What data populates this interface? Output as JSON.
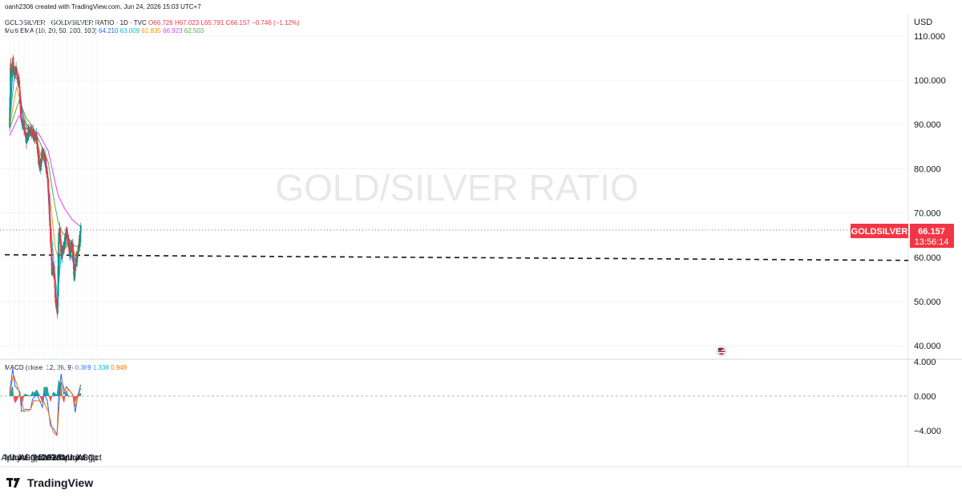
{
  "header": {
    "creator_line": "oanh2306 created with TradingView.com, Jun 24, 2026 15:03 UTC+7",
    "symbol_title": "GOLDSILVER · GOLD/SILVER RATIO · 1D · TVC",
    "ohlc": {
      "open": "O66.726",
      "high": "H67.023",
      "low": "L65.791",
      "close": "C66.157",
      "change": "−0.746 (−1.12%)"
    },
    "ema_label": "Multi EMA (10, 20, 50, 200, 100)",
    "ema_values": [
      "64.210",
      "63.009",
      "61.835",
      "66.923",
      "62.503"
    ],
    "macd_label": "MACD (close, 12, 26, 9)",
    "macd_values": [
      "0.389",
      "1.338",
      "0.949"
    ]
  },
  "watermark": "GOLD/SILVER RATIO",
  "price_tag": {
    "symbol": "GOLDSILVER",
    "price": "66.157",
    "countdown": "13:56:14"
  },
  "footer": {
    "brand": "TradingView"
  },
  "colors": {
    "up": "#089981",
    "down": "#f23645",
    "ema10": "#2962ff",
    "ema20": "#00bcd4",
    "ema50": "#ff9800",
    "ema200": "#e040fb",
    "ema100": "#4caf50",
    "macd": "#2962ff",
    "signal": "#ff6d00",
    "hist_up": "#26a69a",
    "hist_down": "#ef5350"
  },
  "chart_data": {
    "type": "candlestick",
    "title": "GOLDSILVER · GOLD/SILVER RATIO · 1D · TVC",
    "price_axis": {
      "unit": "USD",
      "ticks": [
        "110.000",
        "100.000",
        "90.000",
        "80.000",
        "70.000",
        "60.000",
        "50.000",
        "40.000"
      ],
      "range": [
        38,
        115
      ]
    },
    "macd_axis": {
      "ticks": [
        "4.000",
        "0.000",
        "−4.000"
      ],
      "range": [
        -5.5,
        4.5
      ]
    },
    "time_axis": {
      "labels": [
        "Apr",
        "May",
        "Jun",
        "Jul",
        "Aug",
        "Sep",
        "Oct",
        "Nov",
        "Dec",
        "2026",
        "Feb",
        "Mar",
        "Apr",
        "May",
        "Jun",
        "Jul",
        "Aug",
        "Sep",
        "Oct"
      ],
      "bold": [
        "2026"
      ]
    },
    "horizontal_line": 60.2,
    "price_path": [
      [
        "2025-04-01",
        89.5
      ],
      [
        "2025-04-08",
        104.5
      ],
      [
        "2025-04-15",
        101.0
      ],
      [
        "2025-04-22",
        104.0
      ],
      [
        "2025-05-01",
        101.5
      ],
      [
        "2025-05-12",
        103.0
      ],
      [
        "2025-05-20",
        100.5
      ],
      [
        "2025-06-01",
        99.5
      ],
      [
        "2025-06-08",
        94.0
      ],
      [
        "2025-06-15",
        90.5
      ],
      [
        "2025-07-01",
        89.5
      ],
      [
        "2025-07-15",
        86.5
      ],
      [
        "2025-08-01",
        89.0
      ],
      [
        "2025-08-15",
        88.5
      ],
      [
        "2025-09-01",
        87.5
      ],
      [
        "2025-09-15",
        87.5
      ],
      [
        "2025-10-01",
        82.0
      ],
      [
        "2025-10-15",
        80.0
      ],
      [
        "2025-10-25",
        84.5
      ],
      [
        "2025-11-10",
        82.5
      ],
      [
        "2025-11-25",
        78.5
      ],
      [
        "2025-12-05",
        73.5
      ],
      [
        "2025-12-15",
        65.0
      ],
      [
        "2025-12-25",
        56.0
      ],
      [
        "2026-01-05",
        58.0
      ],
      [
        "2026-01-15",
        51.0
      ],
      [
        "2026-01-22",
        49.5
      ],
      [
        "2026-01-28",
        46.5
      ],
      [
        "2026-02-01",
        56.5
      ],
      [
        "2026-02-05",
        64.5
      ],
      [
        "2026-02-12",
        66.0
      ],
      [
        "2026-02-22",
        60.0
      ],
      [
        "2026-03-05",
        62.0
      ],
      [
        "2026-03-15",
        63.0
      ],
      [
        "2026-03-25",
        66.0
      ],
      [
        "2026-04-05",
        64.0
      ],
      [
        "2026-04-15",
        61.0
      ],
      [
        "2026-04-25",
        62.5
      ],
      [
        "2026-05-05",
        62.0
      ],
      [
        "2026-05-15",
        55.0
      ],
      [
        "2026-05-22",
        58.5
      ],
      [
        "2026-06-01",
        60.0
      ],
      [
        "2026-06-10",
        62.0
      ],
      [
        "2026-06-15",
        64.5
      ],
      [
        "2026-06-20",
        63.5
      ],
      [
        "2026-06-24",
        66.157
      ]
    ],
    "emas": [
      {
        "name": "EMA 200",
        "value": "66.923",
        "points": [
          [
            "2025-04-01",
            87.5
          ],
          [
            "2025-06-01",
            92.0
          ],
          [
            "2025-08-01",
            89.5
          ],
          [
            "2025-10-01",
            88.0
          ],
          [
            "2025-12-01",
            84.0
          ],
          [
            "2026-01-01",
            79.0
          ],
          [
            "2026-02-01",
            74.0
          ],
          [
            "2026-03-15",
            71.0
          ],
          [
            "2026-05-01",
            68.5
          ],
          [
            "2026-06-24",
            66.9
          ]
        ]
      },
      {
        "name": "EMA 100",
        "value": "62.503",
        "points": [
          [
            "2025-04-01",
            89.0
          ],
          [
            "2025-06-01",
            95.5
          ],
          [
            "2025-07-15",
            91.5
          ],
          [
            "2025-09-01",
            89.0
          ],
          [
            "2025-10-15",
            85.5
          ],
          [
            "2025-12-01",
            81.5
          ],
          [
            "2026-01-01",
            74.0
          ],
          [
            "2026-02-01",
            68.0
          ],
          [
            "2026-03-01",
            65.5
          ],
          [
            "2026-04-15",
            64.0
          ],
          [
            "2026-05-15",
            62.5
          ],
          [
            "2026-06-24",
            62.5
          ]
        ]
      },
      {
        "name": "EMA 50",
        "value": "61.835",
        "points": [
          [
            "2025-04-01",
            89.5
          ],
          [
            "2025-05-15",
            98.5
          ],
          [
            "2025-06-15",
            94.0
          ],
          [
            "2025-08-01",
            88.5
          ],
          [
            "2025-09-15",
            87.0
          ],
          [
            "2025-10-15",
            83.0
          ],
          [
            "2025-11-15",
            81.0
          ],
          [
            "2025-12-15",
            72.0
          ],
          [
            "2026-01-15",
            62.0
          ],
          [
            "2026-02-01",
            60.0
          ],
          [
            "2026-03-01",
            61.0
          ],
          [
            "2026-04-15",
            63.5
          ],
          [
            "2026-05-20",
            60.5
          ],
          [
            "2026-06-24",
            61.8
          ]
        ]
      },
      {
        "name": "EMA 20",
        "value": "63.009",
        "points": [
          [
            "2025-04-01",
            90.0
          ],
          [
            "2025-05-01",
            101.0
          ],
          [
            "2025-06-01",
            99.5
          ],
          [
            "2025-06-20",
            92.5
          ],
          [
            "2025-08-01",
            88.0
          ],
          [
            "2025-09-15",
            87.5
          ],
          [
            "2025-10-15",
            81.5
          ],
          [
            "2025-11-01",
            83.0
          ],
          [
            "2025-11-25",
            79.5
          ],
          [
            "2025-12-20",
            66.0
          ],
          [
            "2026-01-15",
            55.0
          ],
          [
            "2026-01-30",
            51.0
          ],
          [
            "2026-02-20",
            60.5
          ],
          [
            "2026-03-15",
            62.0
          ],
          [
            "2026-04-10",
            64.0
          ],
          [
            "2026-05-01",
            62.0
          ],
          [
            "2026-05-25",
            58.5
          ],
          [
            "2026-06-24",
            63.0
          ]
        ]
      },
      {
        "name": "EMA 10",
        "value": "64.210",
        "points": [
          [
            "2025-04-01",
            90.5
          ],
          [
            "2025-04-20",
            101.5
          ],
          [
            "2025-05-15",
            102.0
          ],
          [
            "2025-06-10",
            96.0
          ],
          [
            "2025-07-01",
            89.5
          ],
          [
            "2025-08-10",
            88.5
          ],
          [
            "2025-09-15",
            87.5
          ],
          [
            "2025-10-10",
            81.0
          ],
          [
            "2025-10-28",
            83.5
          ],
          [
            "2025-11-25",
            78.0
          ],
          [
            "2025-12-20",
            62.0
          ],
          [
            "2026-01-15",
            53.0
          ],
          [
            "2026-01-30",
            49.0
          ],
          [
            "2026-02-10",
            60.0
          ],
          [
            "2026-02-20",
            63.0
          ],
          [
            "2026-03-10",
            61.5
          ],
          [
            "2026-03-30",
            65.0
          ],
          [
            "2026-04-15",
            62.0
          ],
          [
            "2026-05-20",
            57.0
          ],
          [
            "2026-06-05",
            60.0
          ],
          [
            "2026-06-24",
            64.2
          ]
        ]
      }
    ],
    "macd": {
      "macd_line": [
        [
          "2025-04-01",
          0.3
        ],
        [
          "2025-04-20",
          3.2
        ],
        [
          "2025-05-05",
          1.2
        ],
        [
          "2025-06-05",
          0.5
        ],
        [
          "2025-06-15",
          -1.8
        ],
        [
          "2025-07-10",
          -1.5
        ],
        [
          "2025-08-10",
          -1.6
        ],
        [
          "2025-08-25",
          -0.3
        ],
        [
          "2025-09-20",
          0.2
        ],
        [
          "2025-10-10",
          -0.6
        ],
        [
          "2025-10-25",
          -1.3
        ],
        [
          "2025-11-05",
          0.3
        ],
        [
          "2025-11-25",
          -0.5
        ],
        [
          "2025-12-15",
          -3.5
        ],
        [
          "2026-01-05",
          -3.8
        ],
        [
          "2026-01-25",
          -4.5
        ],
        [
          "2026-02-05",
          0.0
        ],
        [
          "2026-02-20",
          2.6
        ],
        [
          "2026-03-10",
          0.2
        ],
        [
          "2026-03-25",
          1.1
        ],
        [
          "2026-04-20",
          0.5
        ],
        [
          "2026-05-05",
          0.2
        ],
        [
          "2026-05-20",
          -1.9
        ],
        [
          "2026-06-05",
          0.0
        ],
        [
          "2026-06-24",
          1.338
        ]
      ],
      "signal_line": [
        [
          "2025-04-01",
          0.2
        ],
        [
          "2025-04-25",
          2.5
        ],
        [
          "2025-05-20",
          1.2
        ],
        [
          "2025-06-15",
          -0.6
        ],
        [
          "2025-07-01",
          -1.8
        ],
        [
          "2025-08-10",
          -1.6
        ],
        [
          "2025-09-01",
          -0.5
        ],
        [
          "2025-10-15",
          -0.6
        ],
        [
          "2025-11-01",
          -0.6
        ],
        [
          "2025-12-01",
          -1.8
        ],
        [
          "2026-01-01",
          -4.2
        ],
        [
          "2026-01-25",
          -4.6
        ],
        [
          "2026-02-10",
          -0.6
        ],
        [
          "2026-02-25",
          1.7
        ],
        [
          "2026-03-20",
          0.4
        ],
        [
          "2026-04-10",
          0.8
        ],
        [
          "2026-05-05",
          0.1
        ],
        [
          "2026-05-20",
          -1.2
        ],
        [
          "2026-06-05",
          -0.2
        ],
        [
          "2026-06-24",
          0.949
        ]
      ]
    }
  }
}
